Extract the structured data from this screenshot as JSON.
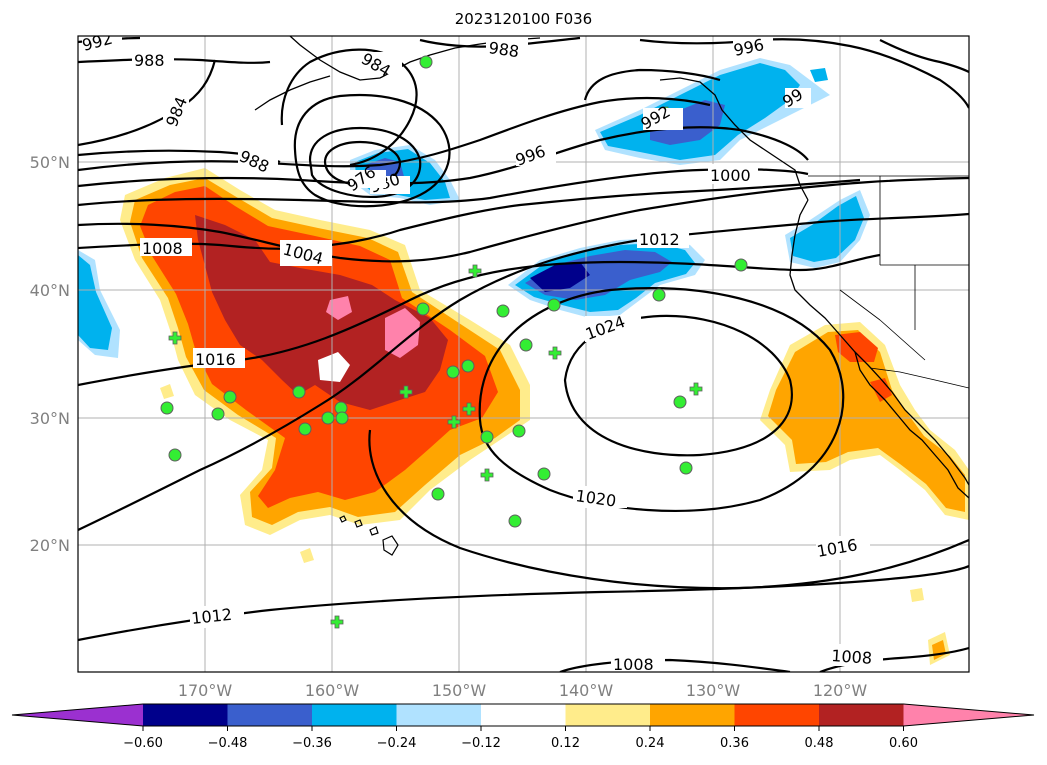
{
  "title": "2023120100 F036",
  "colors": {
    "purple": "#9b30d0",
    "navy": "#00008b",
    "royal_blue": "#3a5fcd",
    "deep_sky_blue": "#00b2ee",
    "light_blue": "#b0e2ff",
    "white": "#ffffff",
    "light_yellow": "#ffec8b",
    "orange": "#ffa500",
    "orange_red": "#ff4500",
    "firebrick": "#b22222",
    "pink": "#ff82ab",
    "obs_marker": "#33ee33"
  },
  "map": {
    "lat_labels": [
      "50°N",
      "40°N",
      "30°N",
      "20°N"
    ],
    "lon_labels": [
      "170°W",
      "160°W",
      "150°W",
      "140°W",
      "130°W",
      "120°W"
    ],
    "contour_labels": [
      "992",
      "988",
      "988",
      "984",
      "988",
      "984",
      "980",
      "976",
      "996",
      "996",
      "99",
      "992",
      "1000",
      "1004",
      "1008",
      "1012",
      "1016",
      "1024",
      "1020",
      "1016",
      "1012",
      "1008",
      "1008"
    ]
  },
  "colorbar": {
    "tick_labels": [
      "−0.60",
      "−0.48",
      "−0.36",
      "−0.24",
      "−0.12",
      "0.12",
      "0.24",
      "0.36",
      "0.48",
      "0.60"
    ],
    "bins": [
      {
        "color": "#9b30d0"
      },
      {
        "color": "#00008b"
      },
      {
        "color": "#3a5fcd"
      },
      {
        "color": "#00b2ee"
      },
      {
        "color": "#b0e2ff"
      },
      {
        "color": "#ffffff"
      },
      {
        "color": "#ffec8b"
      },
      {
        "color": "#ffa500"
      },
      {
        "color": "#ff4500"
      },
      {
        "color": "#b22222"
      },
      {
        "color": "#ff82ab"
      }
    ]
  }
}
